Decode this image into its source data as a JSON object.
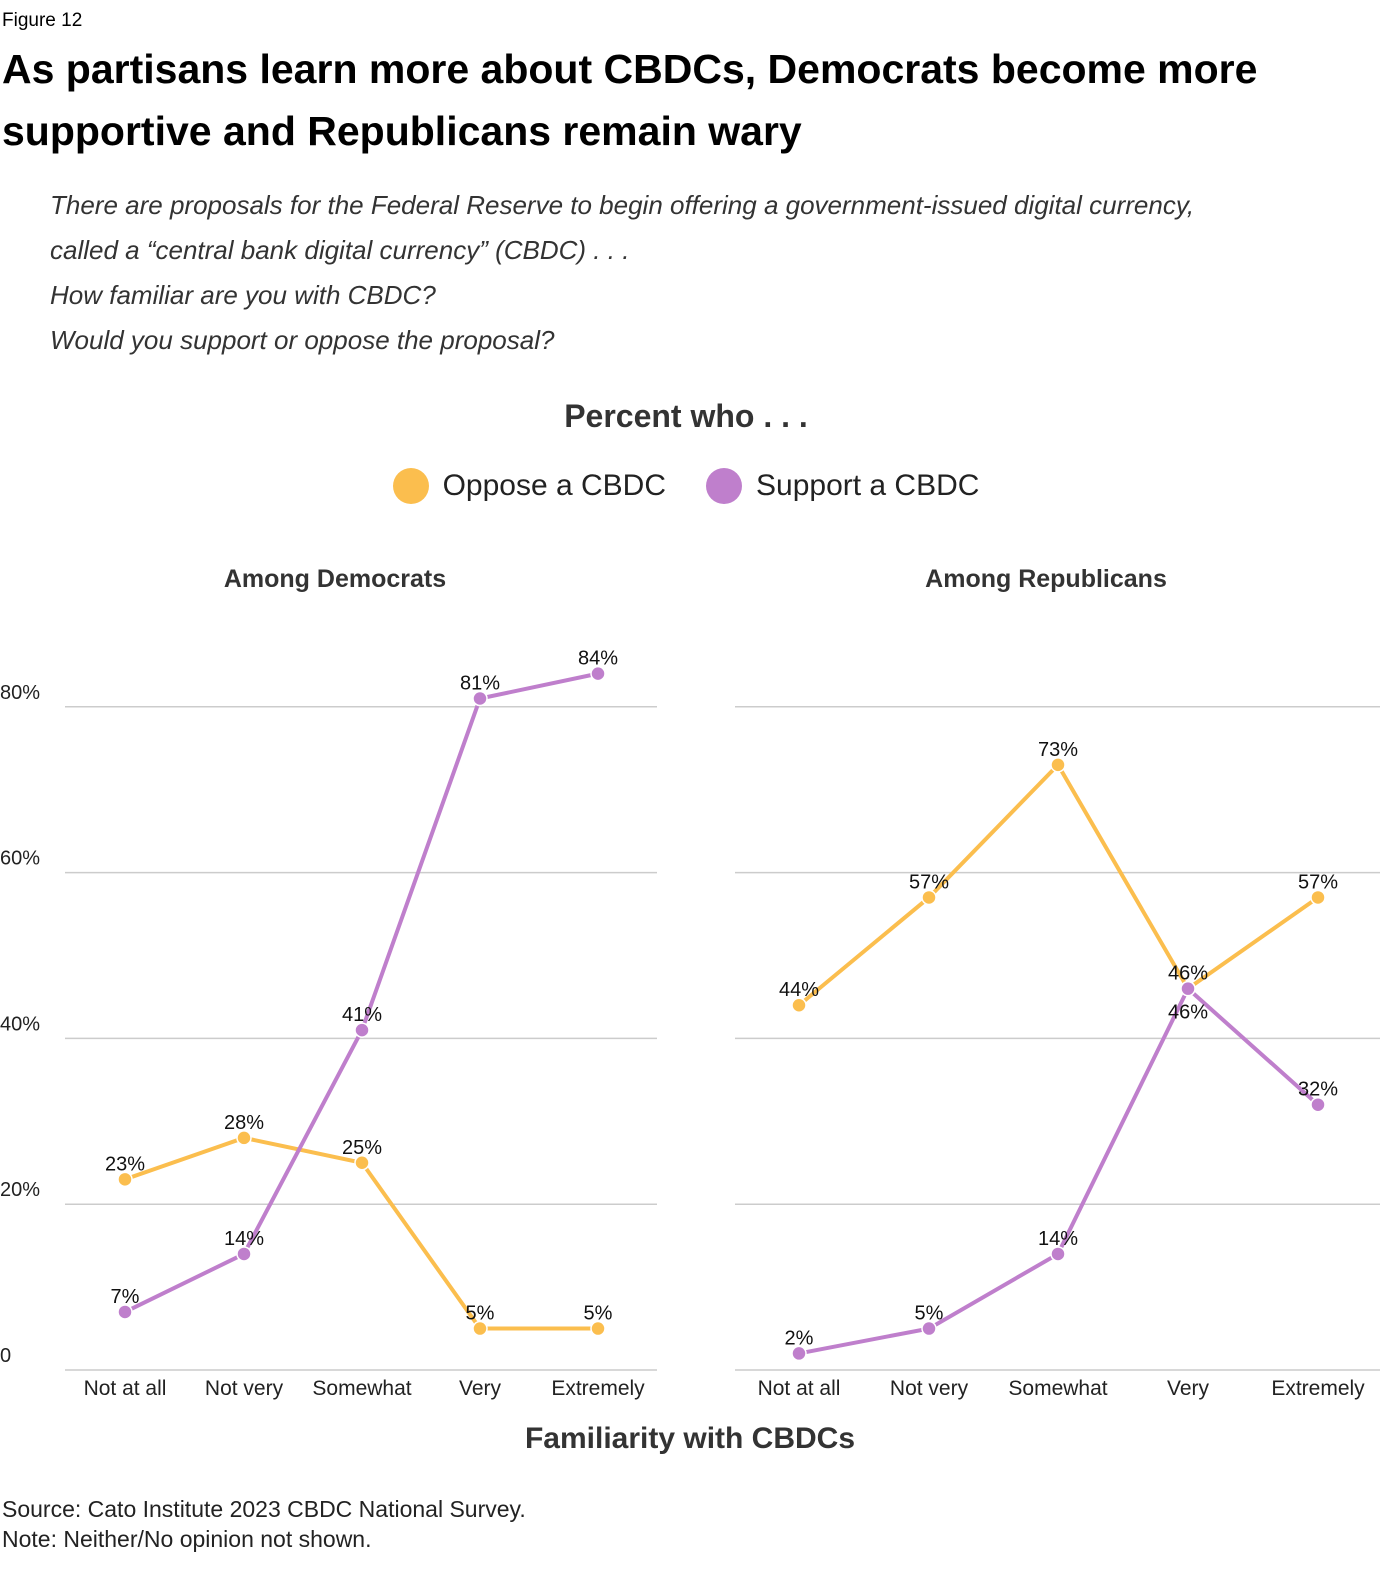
{
  "figure_label": "Figure 12",
  "title": "As partisans learn more about CBDCs, Democrats become more supportive and Republicans remain wary",
  "question": [
    "There are proposals for the Federal Reserve to begin offering a government-issued digital currency,",
    "called a “central bank digital currency” (CBDC) . . .",
    "How familiar are you with CBDC?",
    "Would you support or oppose the proposal?"
  ],
  "header": "Percent who . . .",
  "legend": [
    {
      "label": "Oppose a CBDC",
      "color": "#FBBE4E"
    },
    {
      "label": "Support a CBDC",
      "color": "#BF7FCC"
    }
  ],
  "xlabel": "Familiarity with CBDCs",
  "source": "Source: Cato Institute 2023 CBDC National Survey.",
  "note": "Note: Neither/No opinion not shown.",
  "chart_data": [
    {
      "type": "line",
      "subtitle": "Among Democrats",
      "categories": [
        "Not at all",
        "Not very",
        "Somewhat",
        "Very",
        "Extremely"
      ],
      "yticks": [
        "0",
        "20%",
        "40%",
        "60%",
        "80%"
      ],
      "ylim": [
        0,
        85
      ],
      "grid": true,
      "series": [
        {
          "name": "Oppose a CBDC",
          "values": [
            23,
            28,
            25,
            5,
            5
          ]
        },
        {
          "name": "Support a CBDC",
          "values": [
            7,
            14,
            41,
            81,
            84
          ]
        }
      ]
    },
    {
      "type": "line",
      "subtitle": "Among Republicans",
      "categories": [
        "Not at all",
        "Not very",
        "Somewhat",
        "Very",
        "Extremely"
      ],
      "ylim": [
        0,
        85
      ],
      "grid": true,
      "series": [
        {
          "name": "Oppose a CBDC",
          "values": [
            44,
            57,
            73,
            46,
            57
          ]
        },
        {
          "name": "Support a CBDC",
          "values": [
            2,
            5,
            14,
            46,
            32
          ]
        }
      ]
    }
  ]
}
